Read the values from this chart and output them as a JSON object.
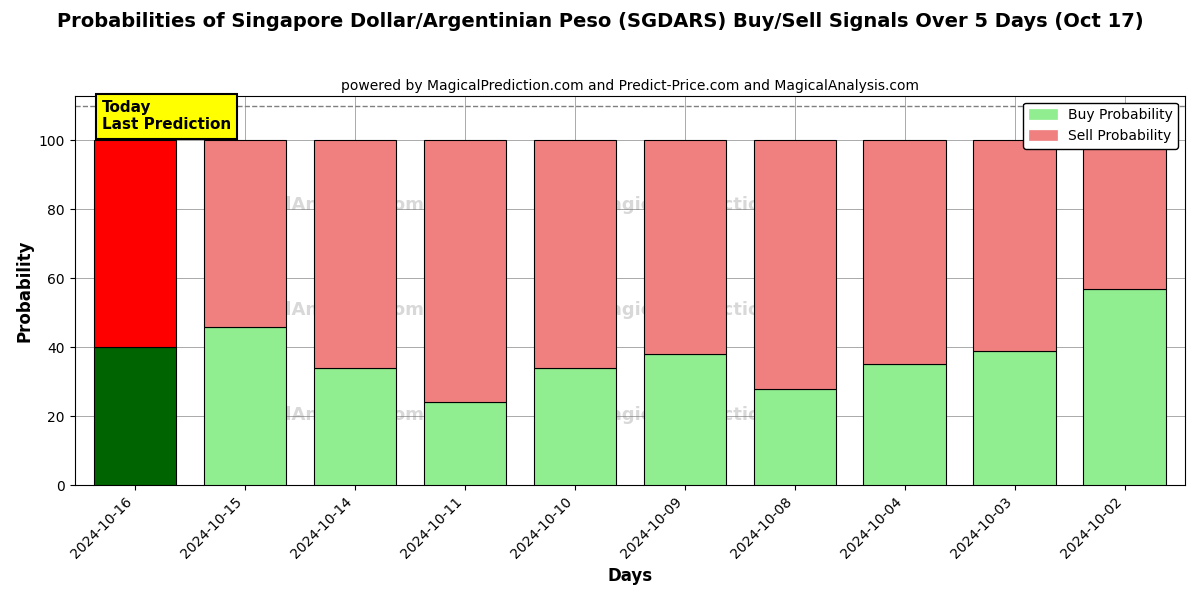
{
  "title": "Probabilities of Singapore Dollar/Argentinian Peso (SGDARS) Buy/Sell Signals Over 5 Days (Oct 17)",
  "subtitle": "powered by MagicalPrediction.com and Predict-Price.com and MagicalAnalysis.com",
  "xlabel": "Days",
  "ylabel": "Probability",
  "categories": [
    "2024-10-16",
    "2024-10-15",
    "2024-10-14",
    "2024-10-11",
    "2024-10-10",
    "2024-10-09",
    "2024-10-08",
    "2024-10-04",
    "2024-10-03",
    "2024-10-02"
  ],
  "buy_values": [
    40,
    46,
    34,
    24,
    34,
    38,
    28,
    35,
    39,
    57
  ],
  "sell_values": [
    60,
    54,
    66,
    76,
    66,
    62,
    72,
    65,
    61,
    43
  ],
  "buy_colors": [
    "#006400",
    "#90EE90",
    "#90EE90",
    "#90EE90",
    "#90EE90",
    "#90EE90",
    "#90EE90",
    "#90EE90",
    "#90EE90",
    "#90EE90"
  ],
  "sell_colors": [
    "#FF0000",
    "#F08080",
    "#F08080",
    "#F08080",
    "#F08080",
    "#F08080",
    "#F08080",
    "#F08080",
    "#F08080",
    "#F08080"
  ],
  "legend_buy_color": "#90EE90",
  "legend_sell_color": "#F08080",
  "today_label": "Today\nLast Prediction",
  "today_box_color": "#FFFF00",
  "ylim": [
    0,
    113
  ],
  "yticks": [
    0,
    20,
    40,
    60,
    80,
    100
  ],
  "dashed_line_y": 110,
  "background_color": "#ffffff",
  "grid_color": "#aaaaaa",
  "title_fontsize": 14,
  "subtitle_fontsize": 10,
  "label_fontsize": 12,
  "tick_fontsize": 10,
  "bar_width": 0.75
}
